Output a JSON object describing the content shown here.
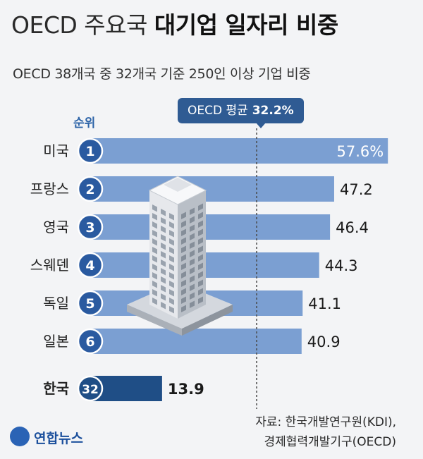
{
  "title": {
    "light": "OECD 주요국",
    "bold": "대기업 일자리 비중"
  },
  "subtitle": "OECD 38개국 중 32개국 기준 250인 이상 기업 비중",
  "average": {
    "label": "OECD 평균",
    "value_text": "32.2%",
    "value": 32.2
  },
  "rank_header": "순위",
  "source": {
    "line1": "자료: 한국개발연구원(KDI),",
    "line2": "경제협력개발기구(OECD)"
  },
  "logo_text": "연합뉴스",
  "colors": {
    "bar": "#7b9fd2",
    "bar_highlight": "#1f4e86",
    "rank_circle": "#2a5aa0",
    "avg_line": "#4a4a4a",
    "label_blue": "#2d64a8",
    "background": "#f3f4f6"
  },
  "chart_data": {
    "type": "bar",
    "orientation": "horizontal",
    "categories": [
      "미국",
      "프랑스",
      "영국",
      "스웨덴",
      "독일",
      "일본",
      "한국"
    ],
    "ranks": [
      "1",
      "2",
      "3",
      "4",
      "5",
      "6",
      "32"
    ],
    "values": [
      57.6,
      47.2,
      46.4,
      44.3,
      41.1,
      40.9,
      13.9
    ],
    "value_labels": [
      "57.6%",
      "47.2",
      "46.4",
      "44.3",
      "41.1",
      "40.9",
      "13.9"
    ],
    "highlight": "한국",
    "reference_line": 32.2,
    "title": "대기업 일자리 비중",
    "xlim": [
      0,
      60
    ]
  }
}
